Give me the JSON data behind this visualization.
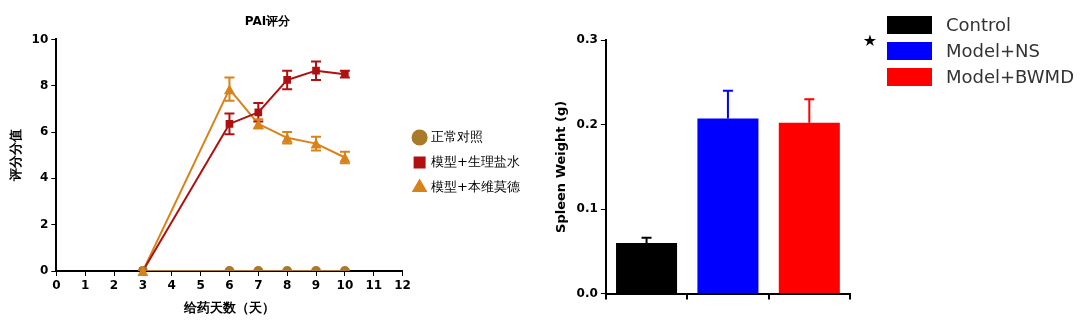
{
  "chart_data": [
    {
      "type": "line",
      "title": "PAI评分",
      "xlabel": "给药天数（天）",
      "ylabel": "评分分值",
      "xlim": [
        0,
        12
      ],
      "xticks": [
        0,
        1,
        2,
        3,
        4,
        5,
        6,
        7,
        8,
        9,
        10,
        11,
        12
      ],
      "ylim": [
        0,
        10
      ],
      "yticks": [
        0,
        2,
        4,
        6,
        8,
        10
      ],
      "grid": false,
      "legend": "right",
      "line_style": "solid",
      "series": [
        {
          "name": "正常对照",
          "color": "#a87a2a",
          "marker": "circle",
          "x": [
            3,
            6,
            7,
            8,
            9,
            10
          ],
          "values": [
            0,
            0,
            0,
            0,
            0,
            0
          ]
        },
        {
          "name": "模型+生理盐水",
          "color": "#b01010",
          "marker": "square",
          "x": [
            3,
            6,
            7,
            8,
            9,
            10
          ],
          "values": [
            0,
            6.35,
            6.85,
            8.25,
            8.65,
            8.5
          ],
          "errors": [
            null,
            0.45,
            0.4,
            0.4,
            0.4,
            0.15
          ]
        },
        {
          "name": "模型+本维莫德",
          "color": "#d9821a",
          "marker": "triangle",
          "x": [
            3,
            6,
            7,
            8,
            9,
            10
          ],
          "values": [
            0,
            7.85,
            6.35,
            5.75,
            5.5,
            4.9
          ],
          "errors": [
            null,
            0.5,
            0.2,
            0.25,
            0.3,
            0.25
          ]
        }
      ]
    },
    {
      "type": "bar",
      "ylabel": "Spleen Weight (g)",
      "categories": [
        null,
        null,
        null
      ],
      "ylim": [
        0,
        0.3
      ],
      "yticks": [
        {
          "value": 0,
          "label": "0.0"
        },
        0.1,
        0.2,
        0.3
      ],
      "grid": false,
      "legend": "top right",
      "annotations": [
        "★"
      ],
      "series": [
        {
          "name": "Control",
          "color": "#000000",
          "values": [
            0.06,
            null,
            null
          ],
          "errors": [
            [
              0.06,
              0.066
            ],
            null,
            null
          ]
        },
        {
          "name": "Model+NS",
          "color": "#0000ff",
          "values": [
            null,
            0.207,
            null
          ],
          "errors": [
            null,
            [
              0.207,
              0.24
            ],
            null
          ]
        },
        {
          "name": "Model+BWMD",
          "color": "#ff0000",
          "values": [
            null,
            null,
            0.202
          ],
          "errors": [
            null,
            null,
            [
              0.202,
              0.23
            ]
          ]
        }
      ]
    }
  ]
}
